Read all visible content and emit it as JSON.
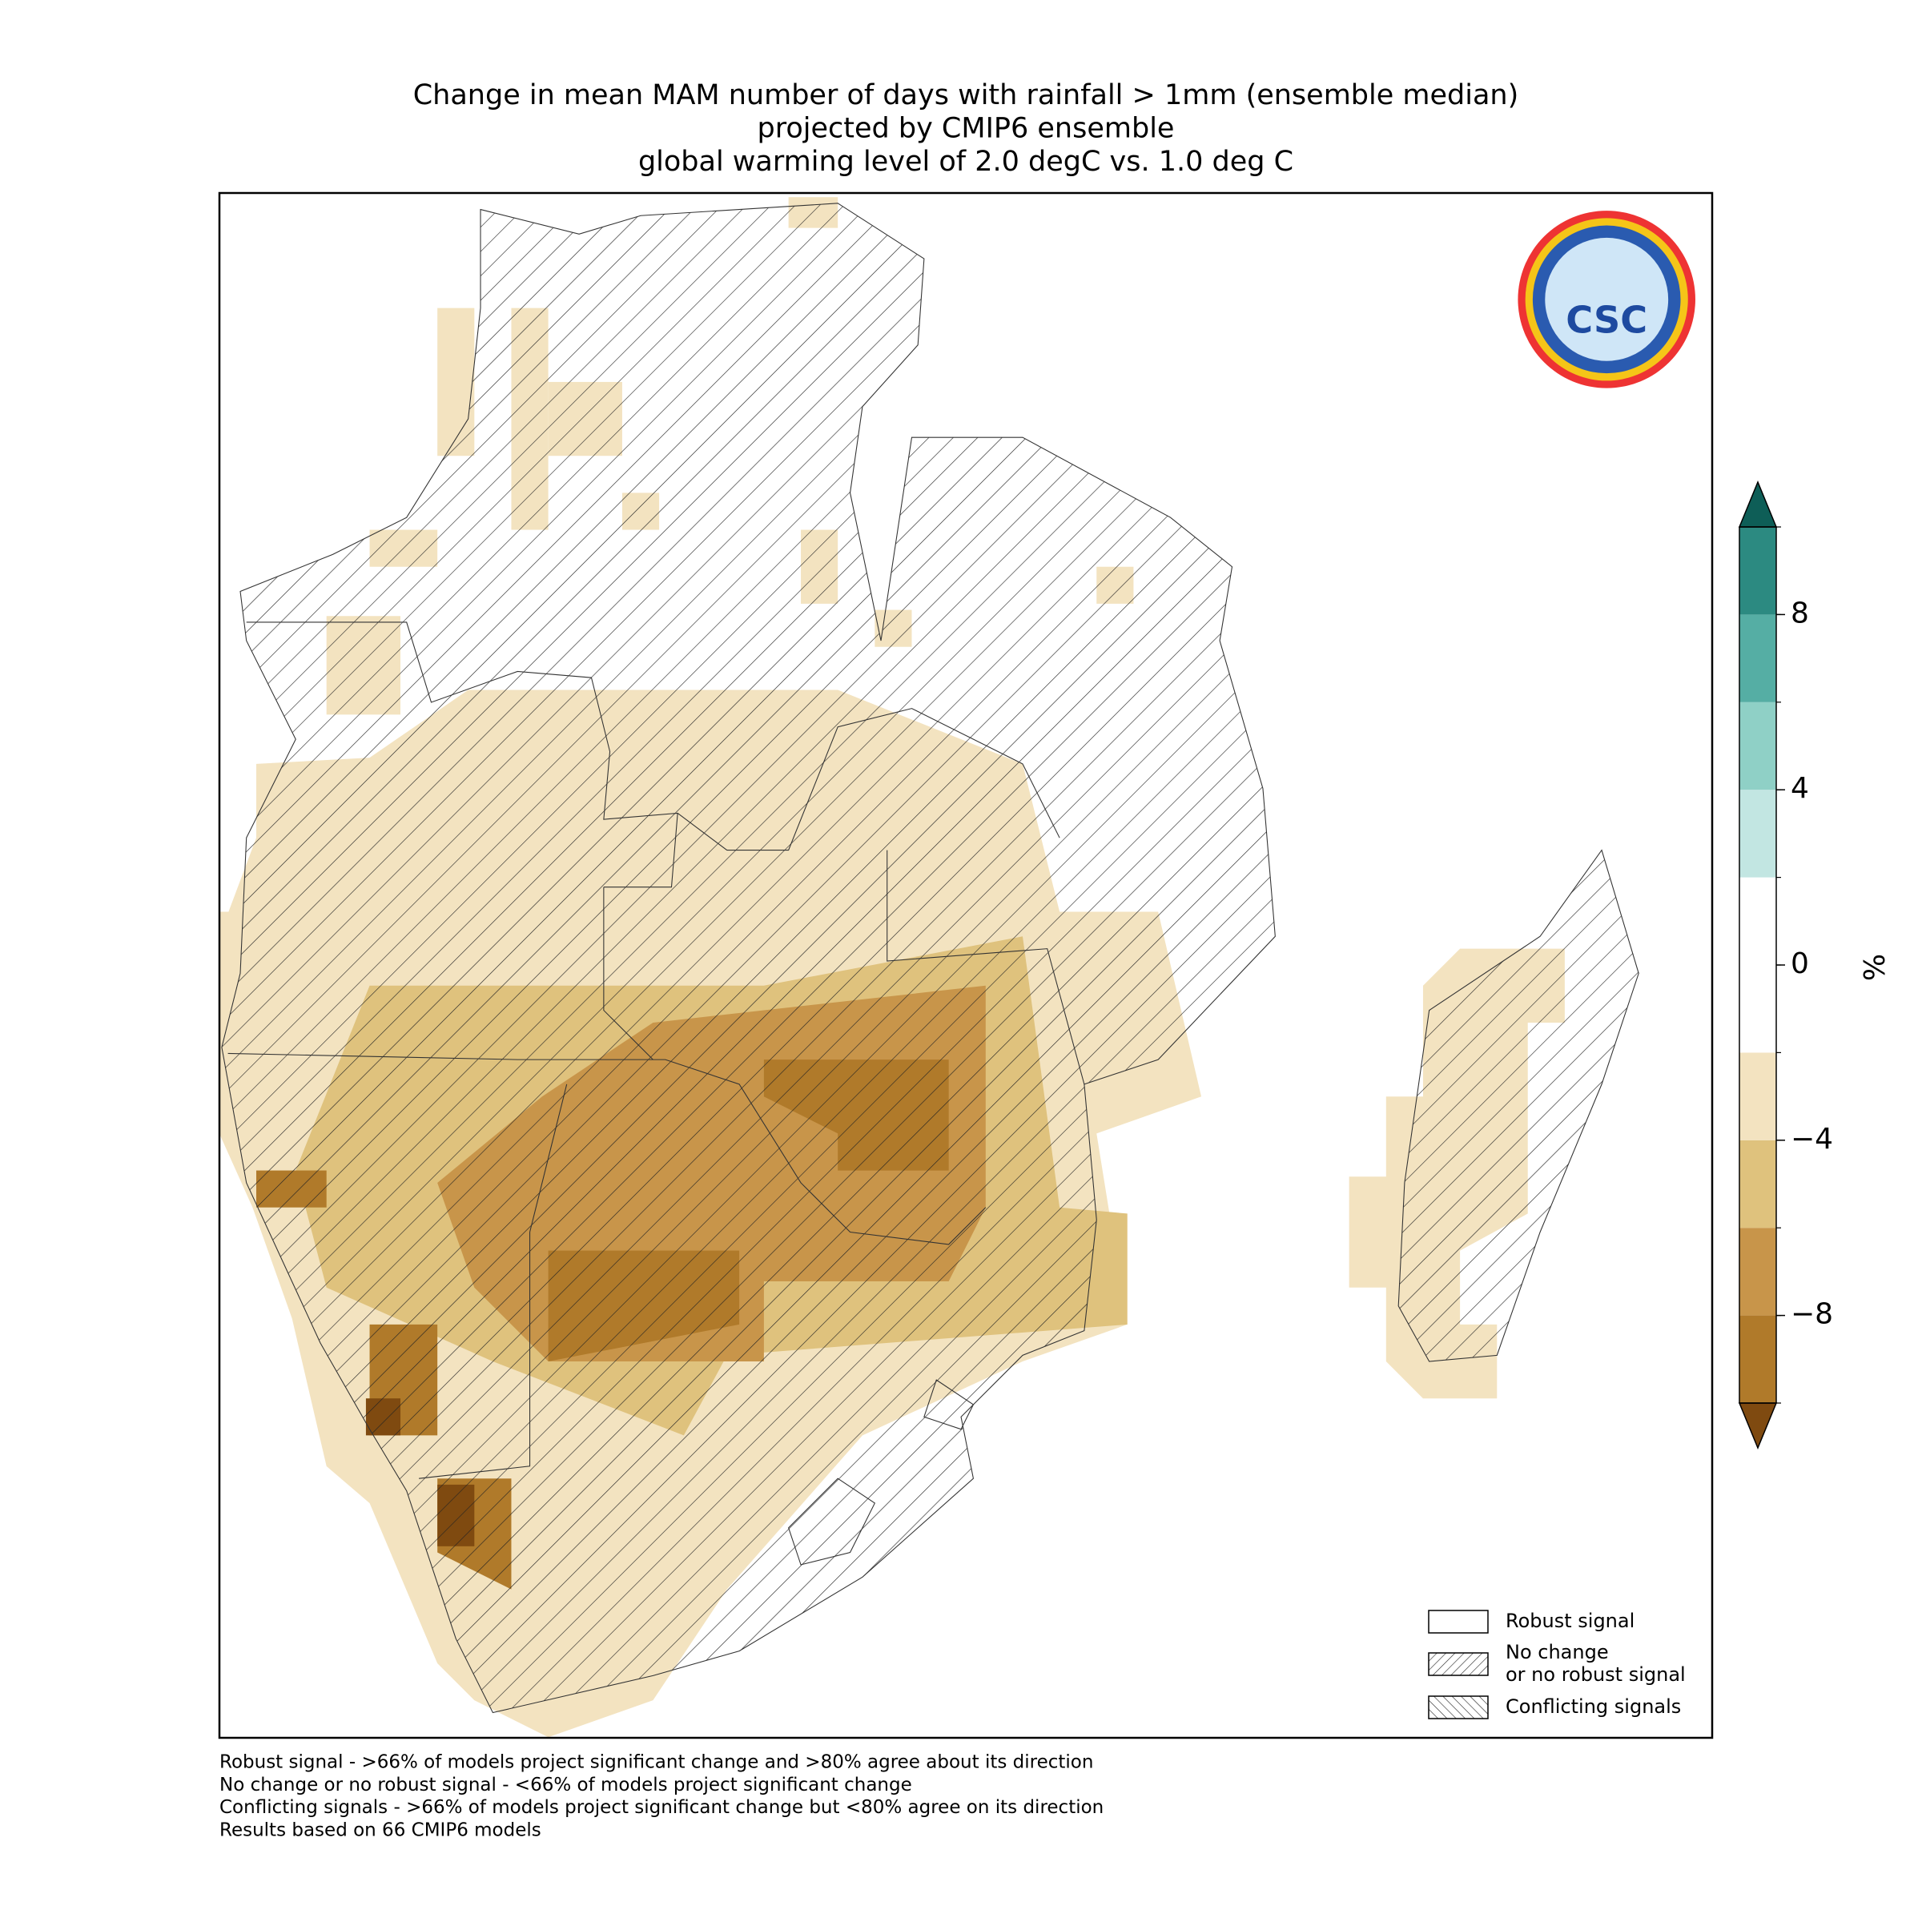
{
  "title": [
    "Change in mean MAM number of days with rainfall > 1mm (ensemble median)",
    "projected by CMIP6 ensemble",
    "global warming level of 2.0 degC vs. 1.0 deg C"
  ],
  "colorbar": {
    "label": "%",
    "levels": [
      -10,
      -8,
      -6,
      -4,
      -2,
      0,
      2,
      4,
      6,
      8,
      10
    ],
    "colors": [
      "#b07a2a",
      "#c8954a",
      "#dfc27d",
      "#f3e3c0",
      "#ffffff",
      "#ffffff",
      "#c2e6e2",
      "#8fd0c6",
      "#55aea4",
      "#2c8a81"
    ],
    "extend_colors": [
      "#7f4a10",
      "#0e5e57"
    ],
    "ticks": [
      {
        "value": -8,
        "label": "−8"
      },
      {
        "value": -4,
        "label": "−4"
      },
      0,
      4,
      8
    ]
  },
  "legend": [
    "Robust signal",
    "No change\nor no robust signal",
    "Conflicting signals"
  ],
  "footnotes": [
    "Robust signal - >66% of models project significant change and >80% agree about its direction",
    "No change or no robust signal - <66% of models project significant change",
    "Conflicting signals - >66% of models project significant change but <80% agree on its direction",
    "Results based on 66 CMIP6 models"
  ],
  "logo": "CSC"
}
